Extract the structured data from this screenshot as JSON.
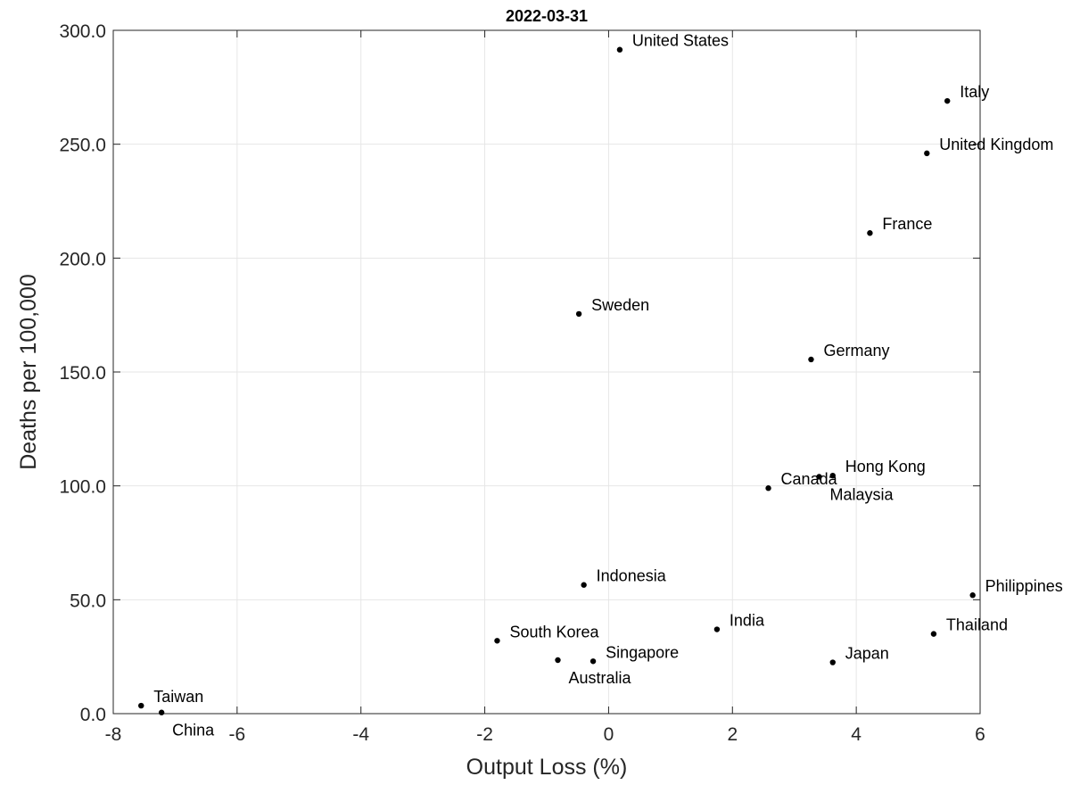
{
  "chart_data": {
    "type": "scatter",
    "title": "2022-03-31",
    "xlabel": "Output Loss (%)",
    "ylabel": "Deaths per 100,000",
    "xlim": [
      -8,
      6
    ],
    "ylim": [
      0,
      300
    ],
    "x_ticks": [
      -8,
      -6,
      -4,
      -2,
      0,
      2,
      4,
      6
    ],
    "x_tick_labels": [
      "-8",
      "-6",
      "-4",
      "-2",
      "0",
      "2",
      "4",
      "6"
    ],
    "y_ticks": [
      0,
      50,
      100,
      150,
      200,
      250,
      300
    ],
    "y_tick_labels": [
      "0.0",
      "50.0",
      "100.0",
      "150.0",
      "200.0",
      "250.0",
      "300.0"
    ],
    "grid": true,
    "colors": {
      "marker": "#000000",
      "grid": "#e6e6e6",
      "axes": "#262626"
    },
    "points": [
      {
        "label": "United States",
        "x": 0.18,
        "y": 291.5,
        "label_pos": "right"
      },
      {
        "label": "Italy",
        "x": 5.47,
        "y": 269.0,
        "label_pos": "right"
      },
      {
        "label": "United Kingdom",
        "x": 5.14,
        "y": 246.0,
        "label_pos": "right"
      },
      {
        "label": "France",
        "x": 4.22,
        "y": 211.0,
        "label_pos": "right"
      },
      {
        "label": "Sweden",
        "x": -0.48,
        "y": 175.5,
        "label_pos": "right"
      },
      {
        "label": "Germany",
        "x": 3.27,
        "y": 155.5,
        "label_pos": "right"
      },
      {
        "label": "Hong Kong",
        "x": 3.62,
        "y": 104.5,
        "label_pos": "right"
      },
      {
        "label": "Malaysia",
        "x": 3.4,
        "y": 104.0,
        "label_pos": "below-right"
      },
      {
        "label": "Canada",
        "x": 2.58,
        "y": 99.0,
        "label_pos": "right"
      },
      {
        "label": "Indonesia",
        "x": -0.4,
        "y": 56.5,
        "label_pos": "right"
      },
      {
        "label": "Philippines",
        "x": 5.88,
        "y": 52.0,
        "label_pos": "right"
      },
      {
        "label": "India",
        "x": 1.75,
        "y": 37.0,
        "label_pos": "right"
      },
      {
        "label": "Thailand",
        "x": 5.25,
        "y": 35.0,
        "label_pos": "right"
      },
      {
        "label": "South Korea",
        "x": -1.8,
        "y": 32.0,
        "label_pos": "right"
      },
      {
        "label": "Singapore",
        "x": -0.25,
        "y": 23.0,
        "label_pos": "right"
      },
      {
        "label": "Australia",
        "x": -0.82,
        "y": 23.5,
        "label_pos": "below-right"
      },
      {
        "label": "Japan",
        "x": 3.62,
        "y": 22.5,
        "label_pos": "right"
      },
      {
        "label": "Taiwan",
        "x": -7.55,
        "y": 3.5,
        "label_pos": "right"
      },
      {
        "label": "China",
        "x": -7.22,
        "y": 0.5,
        "label_pos": "below-right"
      }
    ]
  }
}
